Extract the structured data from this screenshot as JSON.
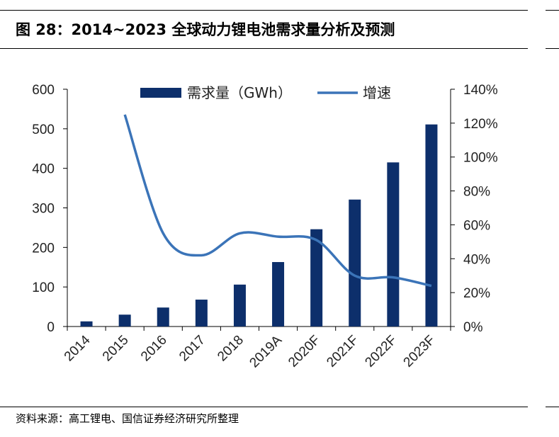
{
  "header": {
    "title": "图 28：2014~2023 全球动力锂电池需求量分析及预测"
  },
  "footer": {
    "source": "资料来源：高工锂电、国信证券经济研究所整理"
  },
  "chart_data": {
    "type": "bar",
    "categories": [
      "2014",
      "2015",
      "2016",
      "2017",
      "2018",
      "2019A",
      "2020F",
      "2021F",
      "2022F",
      "2023F"
    ],
    "series": [
      {
        "name": "需求量（GWh）",
        "type": "bar",
        "axis": "left",
        "color": "#0d2f6b",
        "values": [
          13,
          30,
          48,
          68,
          106,
          163,
          246,
          321,
          415,
          511
        ]
      },
      {
        "name": "增速",
        "type": "line",
        "axis": "right",
        "color": "#3b74b8",
        "values": [
          null,
          1.25,
          0.55,
          0.42,
          0.55,
          0.53,
          0.51,
          0.3,
          0.29,
          0.24
        ]
      }
    ],
    "left_axis": {
      "min": 0,
      "max": 600,
      "ticks": [
        "0",
        "100",
        "200",
        "300",
        "400",
        "500",
        "600"
      ]
    },
    "right_axis": {
      "min": 0,
      "max": 1.4,
      "ticks": [
        "0%",
        "20%",
        "40%",
        "60%",
        "80%",
        "100%",
        "120%",
        "140%"
      ]
    },
    "legend": {
      "position": "top"
    },
    "grid": false
  }
}
